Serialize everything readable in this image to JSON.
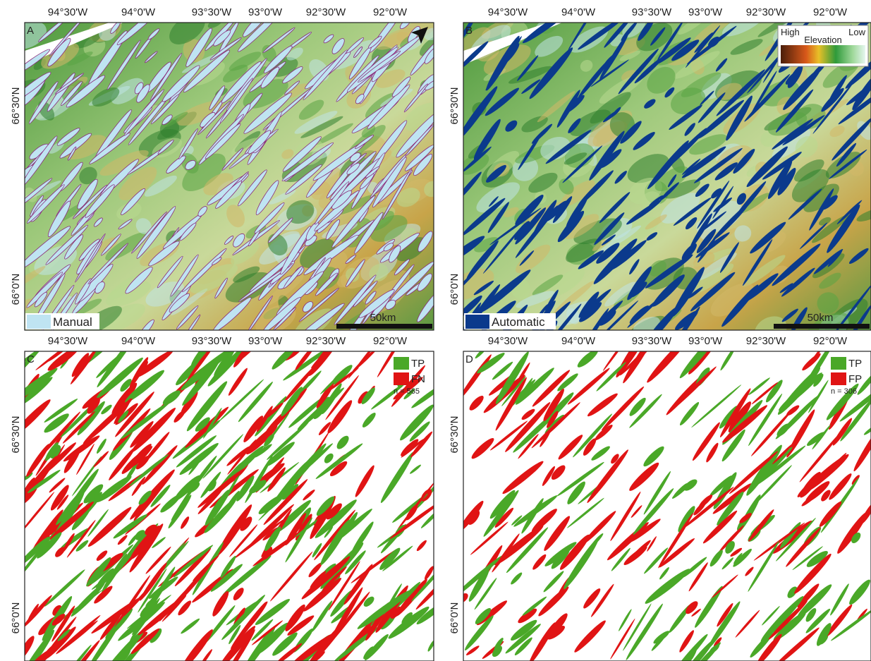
{
  "lon_labels": [
    "94°30'W",
    "94°0'W",
    "93°30'W",
    "93°0'W",
    "92°30'W",
    "92°0'W"
  ],
  "lat_labels": [
    "66°30'N",
    "66°0'N"
  ],
  "panels": [
    {
      "letter": "A",
      "legend": [
        {
          "label": "Manual",
          "color": "#bfe4f2"
        }
      ],
      "scale_bar": "50km"
    },
    {
      "letter": "B",
      "legend": [
        {
          "label": "Automatic",
          "color": "#0b3a8c"
        }
      ],
      "scale_bar": "50km",
      "elevation_legend": {
        "high": "High",
        "title": "Elevation",
        "low": "Low"
      }
    },
    {
      "letter": "C",
      "legend": [
        {
          "label": "TP",
          "color": "#4aa828"
        },
        {
          "label": "FN",
          "color": "#e01414"
        }
      ],
      "count": "n = 565"
    },
    {
      "letter": "D",
      "legend": [
        {
          "label": "TP",
          "color": "#4aa828"
        },
        {
          "label": "FP",
          "color": "#e01414"
        }
      ],
      "count": "n = 306"
    }
  ]
}
